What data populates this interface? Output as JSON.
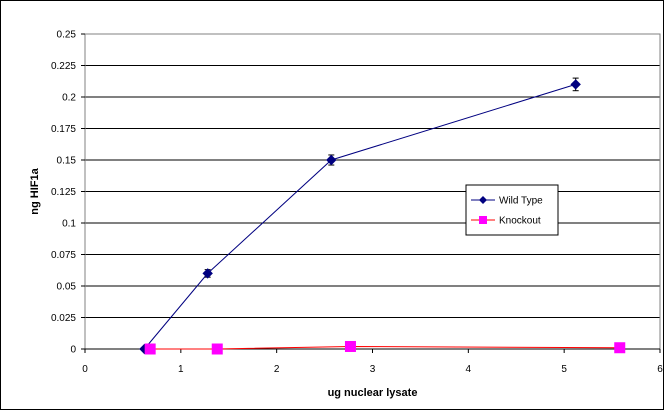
{
  "chart_data": {
    "type": "line",
    "title": "",
    "xlabel": "ug nuclear lysate",
    "ylabel": "ng HIF1a",
    "xlim": [
      0,
      6
    ],
    "ylim": [
      0,
      0.25
    ],
    "x_ticks": [
      "0",
      "1",
      "2",
      "3",
      "4",
      "5",
      "6"
    ],
    "y_ticks": [
      "0",
      "0.025",
      "0.05",
      "0.075",
      "0.1",
      "0.125",
      "0.15",
      "0.175",
      "0.2",
      "0.225",
      "0.25"
    ],
    "grid": "horizontal",
    "legend_position": "right",
    "series": [
      {
        "name": "Wild Type",
        "color": "#000080",
        "marker": "diamond",
        "x": [
          0.62,
          1.28,
          2.57,
          5.12
        ],
        "y": [
          0.0,
          0.06,
          0.15,
          0.21
        ],
        "error": [
          0.0,
          0.003,
          0.004,
          0.005
        ]
      },
      {
        "name": "Knockout",
        "color": "#FF00FF",
        "line_color": "#FF0000",
        "marker": "square",
        "x": [
          0.68,
          1.38,
          2.77,
          5.58
        ],
        "y": [
          0.0,
          0.0,
          0.002,
          0.001
        ],
        "error": [
          0,
          0,
          0,
          0
        ]
      }
    ]
  }
}
